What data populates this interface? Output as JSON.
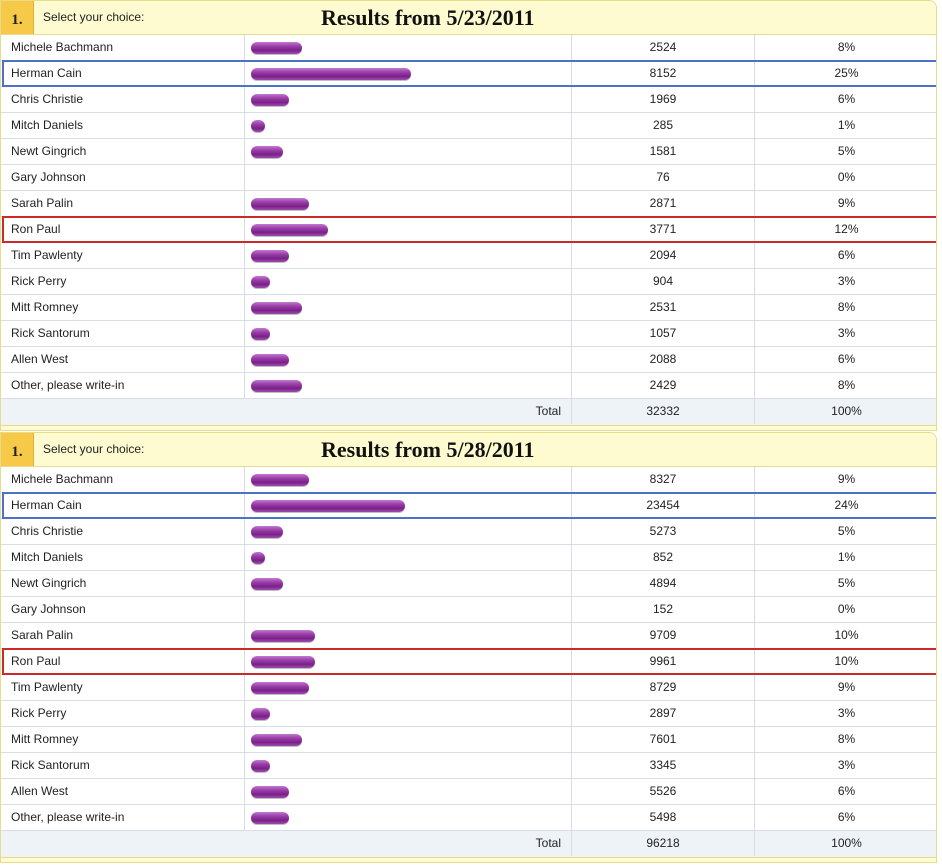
{
  "polls": [
    {
      "number": "1.",
      "prompt": "Select your choice:",
      "title": "Results from 5/23/2011",
      "rows": [
        {
          "name": "Michele Bachmann",
          "votes": "2524",
          "pct": "8%",
          "share": 0.08,
          "highlight": ""
        },
        {
          "name": "Herman Cain",
          "votes": "8152",
          "pct": "25%",
          "share": 0.25,
          "highlight": "blue"
        },
        {
          "name": "Chris Christie",
          "votes": "1969",
          "pct": "6%",
          "share": 0.06,
          "highlight": ""
        },
        {
          "name": "Mitch Daniels",
          "votes": "285",
          "pct": "1%",
          "share": 0.01,
          "highlight": ""
        },
        {
          "name": "Newt Gingrich",
          "votes": "1581",
          "pct": "5%",
          "share": 0.05,
          "highlight": ""
        },
        {
          "name": "Gary Johnson",
          "votes": "76",
          "pct": "0%",
          "share": 0,
          "highlight": ""
        },
        {
          "name": "Sarah Palin",
          "votes": "2871",
          "pct": "9%",
          "share": 0.09,
          "highlight": ""
        },
        {
          "name": "Ron Paul",
          "votes": "3771",
          "pct": "12%",
          "share": 0.12,
          "highlight": "red"
        },
        {
          "name": "Tim Pawlenty",
          "votes": "2094",
          "pct": "6%",
          "share": 0.06,
          "highlight": ""
        },
        {
          "name": "Rick Perry",
          "votes": "904",
          "pct": "3%",
          "share": 0.03,
          "highlight": ""
        },
        {
          "name": "Mitt Romney",
          "votes": "2531",
          "pct": "8%",
          "share": 0.08,
          "highlight": ""
        },
        {
          "name": "Rick Santorum",
          "votes": "1057",
          "pct": "3%",
          "share": 0.03,
          "highlight": ""
        },
        {
          "name": "Allen West",
          "votes": "2088",
          "pct": "6%",
          "share": 0.06,
          "highlight": ""
        },
        {
          "name": "Other, please write-in",
          "votes": "2429",
          "pct": "8%",
          "share": 0.08,
          "highlight": ""
        }
      ],
      "total": {
        "label": "Total",
        "votes": "32332",
        "pct": "100%"
      }
    },
    {
      "number": "1.",
      "prompt": "Select your choice:",
      "title": "Results from 5/28/2011",
      "rows": [
        {
          "name": "Michele Bachmann",
          "votes": "8327",
          "pct": "9%",
          "share": 0.09,
          "highlight": ""
        },
        {
          "name": "Herman Cain",
          "votes": "23454",
          "pct": "24%",
          "share": 0.24,
          "highlight": "blue"
        },
        {
          "name": "Chris Christie",
          "votes": "5273",
          "pct": "5%",
          "share": 0.05,
          "highlight": ""
        },
        {
          "name": "Mitch Daniels",
          "votes": "852",
          "pct": "1%",
          "share": 0.01,
          "highlight": ""
        },
        {
          "name": "Newt Gingrich",
          "votes": "4894",
          "pct": "5%",
          "share": 0.05,
          "highlight": ""
        },
        {
          "name": "Gary Johnson",
          "votes": "152",
          "pct": "0%",
          "share": 0,
          "highlight": ""
        },
        {
          "name": "Sarah Palin",
          "votes": "9709",
          "pct": "10%",
          "share": 0.1,
          "highlight": ""
        },
        {
          "name": "Ron Paul",
          "votes": "9961",
          "pct": "10%",
          "share": 0.1,
          "highlight": "red"
        },
        {
          "name": "Tim Pawlenty",
          "votes": "8729",
          "pct": "9%",
          "share": 0.09,
          "highlight": ""
        },
        {
          "name": "Rick Perry",
          "votes": "2897",
          "pct": "3%",
          "share": 0.03,
          "highlight": ""
        },
        {
          "name": "Mitt Romney",
          "votes": "7601",
          "pct": "8%",
          "share": 0.08,
          "highlight": ""
        },
        {
          "name": "Rick Santorum",
          "votes": "3345",
          "pct": "3%",
          "share": 0.03,
          "highlight": ""
        },
        {
          "name": "Allen West",
          "votes": "5526",
          "pct": "6%",
          "share": 0.06,
          "highlight": ""
        },
        {
          "name": "Other, please write-in",
          "votes": "5498",
          "pct": "6%",
          "share": 0.06,
          "highlight": ""
        }
      ],
      "total": {
        "label": "Total",
        "votes": "96218",
        "pct": "100%"
      }
    }
  ],
  "colors": {
    "bar": "#8a2e9a",
    "highlight_blue": "#4a72c8",
    "highlight_red": "#cc2a2a",
    "header_bg": "#fffbd0",
    "number_badge": "#f7c948"
  }
}
